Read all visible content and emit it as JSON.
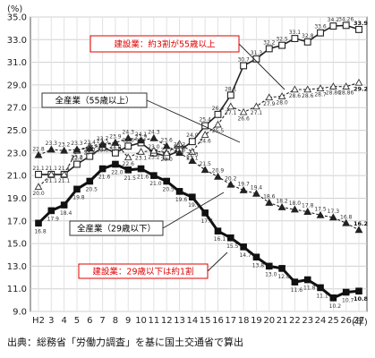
{
  "chart_data": {
    "type": "line",
    "ylabel": "(%)",
    "xlabel": "(年)",
    "ylim": [
      9.0,
      35.0
    ],
    "yticks": [
      9.0,
      11.0,
      13.0,
      15.0,
      17.0,
      19.0,
      21.0,
      23.0,
      25.0,
      27.0,
      29.0,
      31.0,
      33.0,
      35.0
    ],
    "grid": true,
    "categories": [
      "H2",
      "3",
      "4",
      "5",
      "6",
      "7",
      "8",
      "9",
      "10",
      "11",
      "12",
      "13",
      "14",
      "15",
      "16",
      "17",
      "18",
      "19",
      "20",
      "21",
      "22",
      "23",
      "24",
      "25",
      "26",
      "27"
    ],
    "series": [
      {
        "name": "建設業（55歳以上）",
        "marker": "open-square",
        "color": "#222222",
        "values": [
          21.1,
          21.1,
          21.1,
          22.0,
          22.7,
          23.5,
          23.0,
          23.6,
          23.9,
          23.0,
          22.7,
          23.2,
          24.0,
          25.4,
          26.4,
          28.1,
          30.7,
          31.3,
          32.2,
          32.5,
          33.1,
          32.8,
          33.6,
          34.2,
          34.26,
          33.9
        ],
        "labels": [
          "21.1",
          "21.1",
          "21.1",
          "22.0",
          "22.7",
          "23.5",
          "23.0",
          "23.6",
          "23.9",
          "23.0",
          "22.7",
          "23.2",
          "24.0",
          "25.4",
          "26.4",
          "28.1",
          "30.7",
          "31.3",
          "32.2",
          "32.5",
          "33.1",
          "32.8",
          "33.6",
          "34.2",
          "34.26",
          "33.9"
        ]
      },
      {
        "name": "全産業（55歳以上）",
        "marker": "open-triangle",
        "color": "#222222",
        "dashed": true,
        "values": [
          20.0,
          21.1,
          21.1,
          23.2,
          23.6,
          23.8,
          23.9,
          22.6,
          23.1,
          23.2,
          23.0,
          23.8,
          23.1,
          24.6,
          25.5,
          27.1,
          26.6,
          27.1,
          27.9,
          28.0,
          28.6,
          28.6,
          28.7,
          28.86,
          28.86,
          29.2
        ],
        "labels": [
          "20.0",
          "21.1",
          "21.1",
          "23.2",
          "23.6",
          "23.8",
          "23.9",
          "22.6",
          "23.1",
          "23.2",
          "23.0",
          "23.8",
          "23.1",
          "24.6",
          "25.5",
          "27.1",
          "26.6",
          "27.1",
          "27.9",
          "28.0",
          "28.6",
          "28.6",
          "28.7",
          "28.86",
          "28.86",
          "29.2"
        ]
      },
      {
        "name": "全産業（29歳以下）",
        "marker": "filled-triangle",
        "color": "#222222",
        "dashed": true,
        "values": [
          22.8,
          23.3,
          23.2,
          23.3,
          23.4,
          23.7,
          23.9,
          24.3,
          24.1,
          24.3,
          23.6,
          23.0,
          22.3,
          21.5,
          20.9,
          20.2,
          19.7,
          19.4,
          18.6,
          18.2,
          18.0,
          17.8,
          17.5,
          17.3,
          16.8,
          16.2
        ],
        "labels": [
          "22.8",
          "23.3",
          "23.2",
          "23.3",
          "23.4",
          "23.7",
          "23.9",
          "24.3",
          "24.1",
          "24.3",
          "23.6",
          "23.0",
          "22.3",
          "21.5",
          "20.9",
          "20.2",
          "19.7",
          "19.4",
          "18.6",
          "18.2",
          "18.0",
          "17.8",
          "17.5",
          "17.3",
          "16.8",
          "16.2"
        ]
      },
      {
        "name": "建設業（29歳以下）",
        "marker": "filled-square",
        "color": "#111111",
        "thick": true,
        "values": [
          16.8,
          17.9,
          18.4,
          19.8,
          20.5,
          21.6,
          22.0,
          21.5,
          21.6,
          21.0,
          20.5,
          19.6,
          19.1,
          17.7,
          16.1,
          15.5,
          14.7,
          13.8,
          13.0,
          12.8,
          11.6,
          11.8,
          11.1,
          10.2,
          10.7,
          10.8
        ],
        "labels": [
          "16.8",
          "17.9",
          "18.4",
          "19.8",
          "20.5",
          "21.6",
          "22.0",
          "21.5",
          "21.6",
          "21.0",
          "20.5",
          "19.6",
          "19.1",
          "17.7",
          "16.1",
          "15.5",
          "14.7",
          "13.8",
          "13.0",
          "12.8",
          "11.6",
          "11.8",
          "11.1",
          "10.2",
          "10.7",
          "10.8"
        ]
      }
    ],
    "annotations": [
      {
        "text": "建設業：約3割が55歳以上",
        "color": "#e00000",
        "boxed": true
      },
      {
        "text": "全産業（55歳以上）",
        "color": "#000000",
        "boxed": true
      },
      {
        "text": "全産業（29歳以下）",
        "color": "#000000",
        "boxed": true
      },
      {
        "text": "建設業：29歳以下は約1割",
        "color": "#e00000",
        "boxed": true
      }
    ]
  },
  "source_note": "出典：総務省「労働力調査」を基に国土交通省で算出"
}
